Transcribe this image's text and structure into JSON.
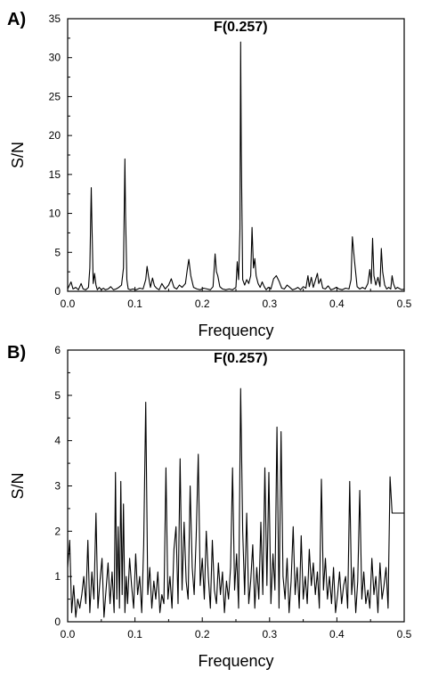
{
  "chart_data": [
    {
      "type": "line",
      "panel_label": "A)",
      "annotation": "F(0.257)",
      "annotation_x": 0.257,
      "xlabel": "Frequency",
      "ylabel": "S/N",
      "xlim": [
        0.0,
        0.5
      ],
      "ylim": [
        0,
        35
      ],
      "xticks": [
        "0.0",
        "0.1",
        "0.2",
        "0.3",
        "0.4",
        "0.5"
      ],
      "yticks": [
        "0",
        "5",
        "10",
        "15",
        "20",
        "25",
        "30",
        "35"
      ],
      "grid": false,
      "series": [
        {
          "x": [
            0.0,
            0.005,
            0.008,
            0.012,
            0.016,
            0.02,
            0.023,
            0.027,
            0.031,
            0.033,
            0.035,
            0.036,
            0.038,
            0.04,
            0.042,
            0.044,
            0.047,
            0.05,
            0.053,
            0.056,
            0.06,
            0.064,
            0.068,
            0.072,
            0.076,
            0.08,
            0.083,
            0.085,
            0.086,
            0.088,
            0.09,
            0.093,
            0.097,
            0.102,
            0.107,
            0.112,
            0.116,
            0.118,
            0.12,
            0.123,
            0.126,
            0.129,
            0.132,
            0.136,
            0.14,
            0.145,
            0.15,
            0.154,
            0.158,
            0.162,
            0.166,
            0.17,
            0.175,
            0.178,
            0.18,
            0.183,
            0.187,
            0.192,
            0.197,
            0.202,
            0.207,
            0.212,
            0.216,
            0.219,
            0.221,
            0.223,
            0.226,
            0.23,
            0.235,
            0.24,
            0.245,
            0.25,
            0.252,
            0.254,
            0.256,
            0.257,
            0.258,
            0.26,
            0.263,
            0.266,
            0.269,
            0.272,
            0.274,
            0.276,
            0.278,
            0.28,
            0.283,
            0.286,
            0.289,
            0.292,
            0.295,
            0.298,
            0.302,
            0.306,
            0.31,
            0.314,
            0.318,
            0.322,
            0.326,
            0.33,
            0.334,
            0.338,
            0.342,
            0.346,
            0.35,
            0.354,
            0.357,
            0.359,
            0.362,
            0.365,
            0.368,
            0.371,
            0.373,
            0.376,
            0.379,
            0.383,
            0.387,
            0.391,
            0.395,
            0.399,
            0.403,
            0.408,
            0.413,
            0.418,
            0.421,
            0.423,
            0.426,
            0.43,
            0.434,
            0.438,
            0.442,
            0.446,
            0.449,
            0.451,
            0.453,
            0.455,
            0.458,
            0.461,
            0.464,
            0.466,
            0.468,
            0.471,
            0.474,
            0.477,
            0.48,
            0.482,
            0.484,
            0.487,
            0.49,
            0.494,
            0.497,
            0.5
          ],
          "y": [
            0.3,
            1.2,
            0.3,
            0.5,
            0.2,
            1.0,
            0.3,
            0.2,
            0.5,
            3.0,
            13.3,
            9.0,
            1.0,
            2.3,
            0.8,
            0.2,
            0.5,
            0.2,
            0.4,
            0.2,
            0.3,
            0.6,
            0.2,
            0.3,
            0.5,
            0.8,
            3.0,
            17.0,
            10.0,
            1.5,
            0.3,
            0.2,
            0.3,
            0.2,
            0.4,
            0.3,
            1.5,
            3.2,
            2.0,
            0.5,
            1.7,
            0.7,
            0.4,
            0.2,
            1.0,
            0.3,
            0.8,
            1.6,
            0.5,
            0.3,
            0.8,
            0.5,
            1.0,
            3.0,
            4.1,
            2.0,
            0.5,
            0.3,
            0.2,
            0.4,
            0.3,
            0.2,
            0.6,
            4.8,
            2.5,
            2.0,
            0.6,
            0.3,
            0.2,
            0.3,
            0.2,
            0.5,
            3.8,
            1.5,
            8.0,
            32.0,
            18.0,
            1.5,
            0.8,
            1.5,
            1.0,
            2.0,
            8.2,
            3.0,
            4.2,
            2.0,
            1.0,
            0.5,
            1.2,
            0.6,
            0.2,
            0.5,
            0.3,
            1.6,
            2.0,
            1.3,
            0.4,
            0.3,
            0.8,
            0.5,
            0.2,
            0.3,
            0.5,
            0.2,
            0.6,
            0.4,
            2.0,
            0.6,
            1.8,
            0.5,
            1.4,
            2.3,
            1.0,
            1.6,
            0.4,
            0.3,
            0.7,
            0.2,
            0.3,
            0.5,
            0.3,
            0.2,
            0.4,
            0.3,
            1.5,
            7.0,
            4.0,
            0.6,
            0.3,
            0.5,
            0.3,
            1.0,
            2.8,
            1.0,
            6.8,
            2.0,
            0.8,
            1.8,
            0.6,
            5.5,
            2.5,
            0.8,
            0.3,
            0.5,
            0.3,
            2.0,
            1.0,
            0.3,
            0.5,
            0.3,
            0.2,
            0.3
          ]
        }
      ]
    },
    {
      "type": "line",
      "panel_label": "B)",
      "annotation": "F(0.257)",
      "annotation_x": 0.257,
      "xlabel": "Frequency",
      "ylabel": "S/N",
      "xlim": [
        0.0,
        0.5
      ],
      "ylim": [
        0,
        6
      ],
      "xticks": [
        "0.0",
        "0.1",
        "0.2",
        "0.3",
        "0.4",
        "0.5"
      ],
      "yticks": [
        "0",
        "1",
        "2",
        "3",
        "4",
        "5",
        "6"
      ],
      "grid": false,
      "series": [
        {
          "x": [
            0.0,
            0.003,
            0.006,
            0.009,
            0.012,
            0.015,
            0.018,
            0.021,
            0.024,
            0.027,
            0.03,
            0.033,
            0.036,
            0.039,
            0.042,
            0.045,
            0.048,
            0.051,
            0.054,
            0.057,
            0.06,
            0.063,
            0.066,
            0.069,
            0.071,
            0.073,
            0.075,
            0.077,
            0.079,
            0.081,
            0.083,
            0.085,
            0.087,
            0.089,
            0.092,
            0.095,
            0.098,
            0.101,
            0.104,
            0.107,
            0.11,
            0.113,
            0.116,
            0.119,
            0.122,
            0.125,
            0.128,
            0.131,
            0.134,
            0.137,
            0.14,
            0.143,
            0.146,
            0.149,
            0.152,
            0.155,
            0.158,
            0.161,
            0.164,
            0.167,
            0.17,
            0.173,
            0.176,
            0.179,
            0.182,
            0.185,
            0.188,
            0.191,
            0.194,
            0.197,
            0.2,
            0.203,
            0.206,
            0.209,
            0.212,
            0.215,
            0.218,
            0.221,
            0.224,
            0.227,
            0.23,
            0.233,
            0.236,
            0.239,
            0.242,
            0.245,
            0.248,
            0.251,
            0.254,
            0.257,
            0.26,
            0.263,
            0.266,
            0.269,
            0.272,
            0.275,
            0.278,
            0.281,
            0.284,
            0.287,
            0.29,
            0.293,
            0.296,
            0.299,
            0.302,
            0.305,
            0.308,
            0.311,
            0.314,
            0.317,
            0.32,
            0.323,
            0.326,
            0.329,
            0.332,
            0.335,
            0.338,
            0.341,
            0.344,
            0.347,
            0.35,
            0.353,
            0.356,
            0.359,
            0.362,
            0.365,
            0.368,
            0.371,
            0.374,
            0.377,
            0.38,
            0.383,
            0.386,
            0.389,
            0.392,
            0.395,
            0.398,
            0.401,
            0.404,
            0.407,
            0.41,
            0.413,
            0.416,
            0.419,
            0.422,
            0.425,
            0.428,
            0.431,
            0.434,
            0.437,
            0.44,
            0.443,
            0.446,
            0.449,
            0.452,
            0.455,
            0.458,
            0.461,
            0.464,
            0.467,
            0.47,
            0.473,
            0.476,
            0.479,
            0.482,
            0.485,
            0.488,
            0.491,
            0.494,
            0.497,
            0.5
          ],
          "y": [
            1.2,
            1.8,
            0.2,
            0.8,
            0.1,
            0.5,
            0.3,
            0.6,
            1.0,
            0.4,
            1.8,
            0.2,
            1.1,
            0.5,
            2.4,
            0.3,
            0.9,
            1.4,
            0.1,
            0.7,
            1.3,
            0.4,
            1.1,
            0.2,
            3.3,
            0.5,
            2.1,
            0.3,
            3.1,
            0.6,
            2.6,
            0.2,
            1.0,
            0.4,
            1.4,
            0.8,
            0.3,
            1.5,
            0.6,
            1.0,
            0.2,
            1.7,
            4.85,
            0.6,
            1.2,
            0.3,
            0.9,
            0.5,
            1.1,
            0.2,
            0.6,
            0.4,
            3.4,
            0.5,
            1.0,
            0.3,
            1.6,
            2.1,
            0.4,
            3.6,
            0.7,
            2.2,
            0.9,
            0.5,
            3.0,
            1.2,
            0.6,
            1.9,
            3.7,
            0.8,
            1.4,
            0.5,
            2.0,
            1.0,
            0.3,
            1.8,
            0.7,
            0.4,
            1.3,
            0.6,
            1.1,
            0.2,
            0.9,
            0.5,
            1.2,
            3.4,
            0.7,
            1.5,
            0.3,
            5.15,
            2.0,
            0.6,
            2.4,
            0.4,
            0.9,
            1.7,
            0.3,
            1.2,
            0.5,
            2.2,
            0.6,
            3.4,
            0.8,
            3.3,
            0.4,
            1.5,
            0.7,
            4.3,
            0.3,
            4.2,
            1.0,
            0.5,
            1.4,
            0.2,
            0.9,
            2.1,
            0.6,
            1.2,
            0.3,
            1.9,
            0.5,
            1.0,
            0.4,
            1.6,
            0.8,
            1.3,
            0.6,
            1.1,
            0.3,
            3.15,
            0.7,
            1.4,
            0.5,
            1.0,
            0.4,
            1.2,
            0.2,
            0.6,
            1.1,
            0.4,
            0.8,
            1.0,
            0.3,
            3.1,
            0.6,
            1.2,
            0.2,
            0.9,
            2.9,
            0.5,
            1.1,
            0.4,
            0.7,
            0.3,
            1.4,
            0.6,
            1.0,
            0.2,
            1.3,
            0.5,
            0.8,
            1.2,
            0.3,
            3.2,
            2.4,
            2.4,
            2.4,
            2.4,
            2.4,
            2.4,
            2.4
          ]
        }
      ]
    }
  ]
}
